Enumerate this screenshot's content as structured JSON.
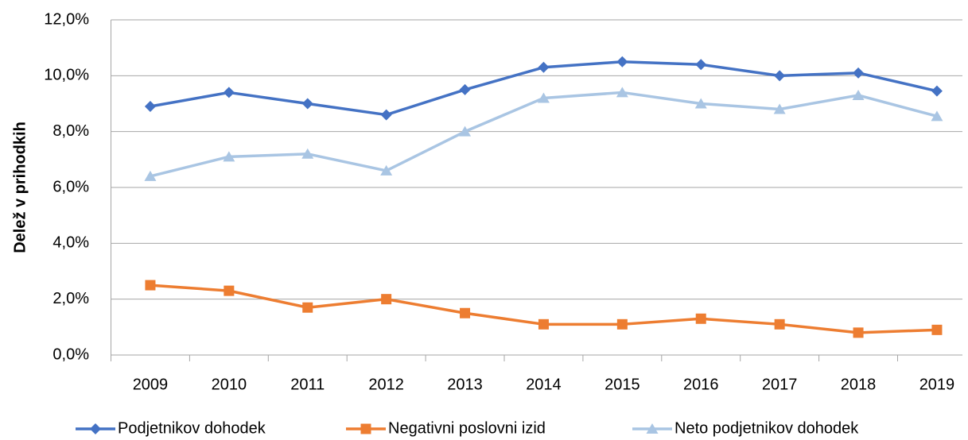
{
  "chart_data": {
    "type": "line",
    "y_label": "Delež v prihodkih",
    "categories": [
      "2009",
      "2010",
      "2011",
      "2012",
      "2013",
      "2014",
      "2015",
      "2016",
      "2017",
      "2018",
      "2019"
    ],
    "series": [
      {
        "name": "Podjetnikov dohodek",
        "color": "#4472c4",
        "marker": "diamond",
        "values": [
          8.9,
          9.4,
          9.0,
          8.6,
          9.5,
          10.3,
          10.5,
          10.4,
          10.0,
          10.1,
          9.45
        ]
      },
      {
        "name": "Negativni poslovni izid",
        "color": "#ed7d31",
        "marker": "square",
        "values": [
          2.5,
          2.3,
          1.7,
          2.0,
          1.5,
          1.1,
          1.1,
          1.3,
          1.1,
          0.8,
          0.9
        ]
      },
      {
        "name": "Neto podjetnikov dohodek",
        "color": "#a9c5e3",
        "marker": "triangle",
        "values": [
          6.4,
          7.1,
          7.2,
          6.6,
          8.0,
          9.2,
          9.4,
          9.0,
          8.8,
          9.3,
          8.55
        ]
      }
    ],
    "ylim": [
      0,
      12
    ],
    "yticks": [
      {
        "value": 0,
        "label": "0,0%"
      },
      {
        "value": 2,
        "label": "2,0%"
      },
      {
        "value": 4,
        "label": "4,0%"
      },
      {
        "value": 6,
        "label": "6,0%"
      },
      {
        "value": 8,
        "label": "8,0%"
      },
      {
        "value": 10,
        "label": "10,0%"
      },
      {
        "value": 12,
        "label": "12,0%"
      }
    ],
    "grid": true,
    "legend": "bottom"
  }
}
